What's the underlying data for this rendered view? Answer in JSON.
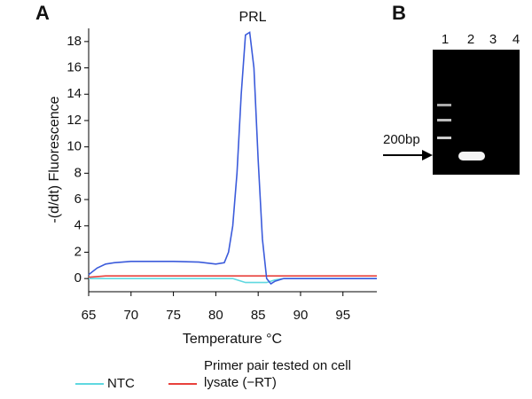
{
  "chart_data": {
    "type": "line",
    "panel_label": "A",
    "title": "PRL",
    "x_label": "Temperature °C",
    "y_label": "-(d/dt) Fluorescence",
    "x": [
      65,
      66,
      67,
      68,
      70,
      75,
      78,
      80,
      81,
      81.5,
      82,
      82.5,
      83,
      83.5,
      84,
      84.5,
      85,
      85.5,
      86,
      86.5,
      87,
      88,
      90,
      95,
      99
    ],
    "series": [
      {
        "name": "PRL",
        "color": "#3b5bdb",
        "values": [
          0.3,
          0.8,
          1.1,
          1.2,
          1.3,
          1.3,
          1.25,
          1.1,
          1.2,
          2,
          4,
          8,
          14,
          18.5,
          18.7,
          16,
          9,
          3,
          0,
          -0.4,
          -0.2,
          0,
          0,
          0,
          0
        ]
      },
      {
        "name": "NTC",
        "color": "#5fd8e0",
        "values": [
          0,
          0,
          0,
          0,
          0,
          0,
          0,
          0,
          0,
          0,
          0,
          -0.1,
          -0.2,
          -0.3,
          -0.3,
          -0.3,
          -0.3,
          -0.3,
          -0.3,
          -0.2,
          -0.1,
          0,
          0,
          0,
          0
        ]
      },
      {
        "name": "Primer pair tested on cell lysate (−RT)",
        "color": "#e8413c",
        "values": [
          0.1,
          0.15,
          0.2,
          0.2,
          0.2,
          0.2,
          0.2,
          0.2,
          0.2,
          0.2,
          0.2,
          0.2,
          0.2,
          0.2,
          0.2,
          0.2,
          0.2,
          0.2,
          0.2,
          0.2,
          0.2,
          0.2,
          0.2,
          0.2,
          0.2
        ]
      }
    ],
    "legend_series": [
      1,
      2
    ],
    "xlim": [
      65,
      99
    ],
    "ylim": [
      -1,
      19
    ],
    "xticks": [
      65,
      70,
      75,
      80,
      85,
      90,
      95
    ],
    "yticks": [
      0,
      2,
      4,
      6,
      8,
      10,
      12,
      14,
      16,
      18
    ]
  },
  "panel_b": {
    "panel_label": "B",
    "lanes": [
      "1",
      "2",
      "3",
      "4"
    ],
    "marker": "200bp"
  }
}
